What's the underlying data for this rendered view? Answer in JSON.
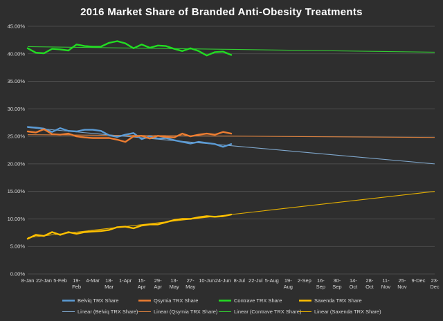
{
  "chart_data": {
    "type": "line",
    "title": "2016 Market Share of Branded Anti-Obesity Treatments",
    "xlabel": "",
    "ylabel": "",
    "ylim": [
      0,
      45
    ],
    "y_ticks": [
      "0.00%",
      "5.00%",
      "10.00%",
      "15.00%",
      "20.00%",
      "25.00%",
      "30.00%",
      "35.00%",
      "40.00%",
      "45.00%"
    ],
    "x_start": "2016-01-08",
    "x_end": "2016-12-23",
    "x_ticks": [
      {
        "date": "2016-01-08",
        "label": [
          "8-Jan"
        ]
      },
      {
        "date": "2016-01-22",
        "label": [
          "22-Jan"
        ]
      },
      {
        "date": "2016-02-05",
        "label": [
          "5-Feb"
        ]
      },
      {
        "date": "2016-02-19",
        "label": [
          "19-",
          "Feb"
        ]
      },
      {
        "date": "2016-03-04",
        "label": [
          "4-Mar"
        ]
      },
      {
        "date": "2016-03-18",
        "label": [
          "18-",
          "Mar"
        ]
      },
      {
        "date": "2016-04-01",
        "label": [
          "1-Apr"
        ]
      },
      {
        "date": "2016-04-15",
        "label": [
          "15-",
          "Apr"
        ]
      },
      {
        "date": "2016-04-29",
        "label": [
          "29-",
          "Apr"
        ]
      },
      {
        "date": "2016-05-13",
        "label": [
          "13-",
          "May"
        ]
      },
      {
        "date": "2016-05-27",
        "label": [
          "27-",
          "May"
        ]
      },
      {
        "date": "2016-06-10",
        "label": [
          "10-Jun"
        ]
      },
      {
        "date": "2016-06-24",
        "label": [
          "24-Jun"
        ]
      },
      {
        "date": "2016-07-08",
        "label": [
          "8-Jul"
        ]
      },
      {
        "date": "2016-07-22",
        "label": [
          "22-Jul"
        ]
      },
      {
        "date": "2016-08-05",
        "label": [
          "5-Aug"
        ]
      },
      {
        "date": "2016-08-19",
        "label": [
          "19-",
          "Aug"
        ]
      },
      {
        "date": "2016-09-02",
        "label": [
          "2-Sep"
        ]
      },
      {
        "date": "2016-09-16",
        "label": [
          "16-",
          "Sep"
        ]
      },
      {
        "date": "2016-09-30",
        "label": [
          "30-",
          "Sep"
        ]
      },
      {
        "date": "2016-10-14",
        "label": [
          "14-",
          "Oct"
        ]
      },
      {
        "date": "2016-10-28",
        "label": [
          "28-",
          "Oct"
        ]
      },
      {
        "date": "2016-11-11",
        "label": [
          "11-",
          "Nov"
        ]
      },
      {
        "date": "2016-11-25",
        "label": [
          "25-",
          "Nov"
        ]
      },
      {
        "date": "2016-12-09",
        "label": [
          "9-Dec"
        ]
      },
      {
        "date": "2016-12-23",
        "label": [
          "23-",
          "Dec"
        ]
      }
    ],
    "x": [
      "2016-01-08",
      "2016-01-15",
      "2016-01-22",
      "2016-01-29",
      "2016-02-05",
      "2016-02-12",
      "2016-02-19",
      "2016-02-26",
      "2016-03-04",
      "2016-03-11",
      "2016-03-18",
      "2016-03-25",
      "2016-04-01",
      "2016-04-08",
      "2016-04-15",
      "2016-04-22",
      "2016-04-29",
      "2016-05-06",
      "2016-05-13",
      "2016-05-20",
      "2016-05-27",
      "2016-06-03",
      "2016-06-10",
      "2016-06-17",
      "2016-06-24",
      "2016-07-01"
    ],
    "series": [
      {
        "name": "Belviq TRX Share",
        "color": "#5b9bd5",
        "values": [
          26.7,
          26.6,
          26.4,
          25.8,
          26.5,
          26.0,
          25.9,
          26.2,
          26.2,
          26.0,
          25.2,
          24.9,
          25.3,
          25.6,
          24.5,
          25.0,
          24.6,
          24.7,
          24.3,
          24.0,
          23.7,
          24.0,
          23.8,
          23.6,
          23.1,
          23.6
        ]
      },
      {
        "name": "Qsymia TRX Share",
        "color": "#ed7d31",
        "values": [
          25.9,
          25.7,
          26.3,
          25.4,
          25.3,
          25.5,
          25.0,
          24.8,
          24.7,
          24.7,
          24.7,
          24.4,
          24.0,
          25.0,
          25.1,
          24.6,
          25.1,
          24.9,
          24.8,
          25.5,
          25.0,
          25.3,
          25.5,
          25.3,
          25.8,
          25.5
        ]
      },
      {
        "name": "Contrave TRX Share",
        "color": "#22dd22",
        "values": [
          41.0,
          40.2,
          40.1,
          40.9,
          40.8,
          40.6,
          41.7,
          41.4,
          41.3,
          41.3,
          42.0,
          42.3,
          41.9,
          41.0,
          41.7,
          41.1,
          41.5,
          41.4,
          40.9,
          40.5,
          41.0,
          40.5,
          39.7,
          40.3,
          40.4,
          39.8
        ]
      },
      {
        "name": "Saxenda TRX Share",
        "color": "#ffc000",
        "values": [
          6.4,
          7.1,
          6.9,
          7.6,
          7.1,
          7.6,
          7.3,
          7.6,
          7.7,
          7.8,
          8.0,
          8.5,
          8.6,
          8.3,
          8.8,
          9.0,
          9.0,
          9.4,
          9.8,
          10.0,
          10.0,
          10.3,
          10.5,
          10.4,
          10.5,
          10.8
        ]
      }
    ],
    "trendlines": [
      {
        "name": "Linear (Belviq TRX Share)",
        "color": "#7fa7cc",
        "start": 26.6,
        "end": 20.0
      },
      {
        "name": "Linear (Qsymia TRX Share)",
        "color": "#d9803f",
        "start": 25.3,
        "end": 24.8
      },
      {
        "name": "Linear (Contrave TRX Share)",
        "color": "#33cc33",
        "start": 41.3,
        "end": 40.3
      },
      {
        "name": "Linear (Saxenda TRX Share)",
        "color": "#e6b000",
        "start": 6.6,
        "end": 15.0
      }
    ],
    "grid": true,
    "legend_position": "bottom",
    "background": "#2e2e2e"
  }
}
